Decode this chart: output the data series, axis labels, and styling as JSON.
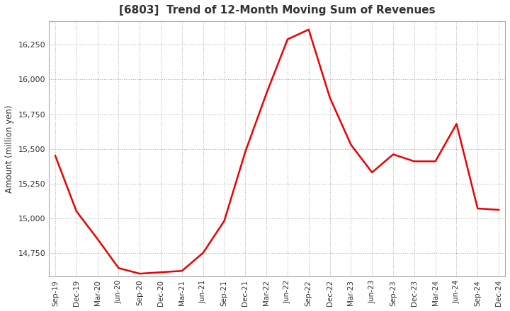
{
  "title": "[6803]  Trend of 12-Month Moving Sum of Revenues",
  "ylabel": "Amount (million yen)",
  "line_color": "#EE0000",
  "line_width": 1.8,
  "background_color": "#FFFFFF",
  "grid_color": "#AAAAAA",
  "title_color": "#333333",
  "ylim": [
    14580,
    16420
  ],
  "yticks": [
    14750,
    15000,
    15250,
    15500,
    15750,
    16000,
    16250
  ],
  "x_labels": [
    "Sep-19",
    "Dec-19",
    "Mar-20",
    "Jun-20",
    "Sep-20",
    "Dec-20",
    "Mar-21",
    "Jun-21",
    "Sep-21",
    "Dec-21",
    "Mar-22",
    "Jun-22",
    "Sep-22",
    "Dec-22",
    "Mar-23",
    "Jun-23",
    "Sep-23",
    "Dec-23",
    "Mar-24",
    "Jun-24",
    "Sep-24",
    "Dec-24"
  ],
  "values": [
    15450,
    15050,
    14850,
    14640,
    14600,
    14610,
    14620,
    14750,
    14980,
    15480,
    15900,
    16290,
    16360,
    15870,
    15530,
    15330,
    15460,
    15410,
    15410,
    15680,
    15070,
    15060
  ]
}
